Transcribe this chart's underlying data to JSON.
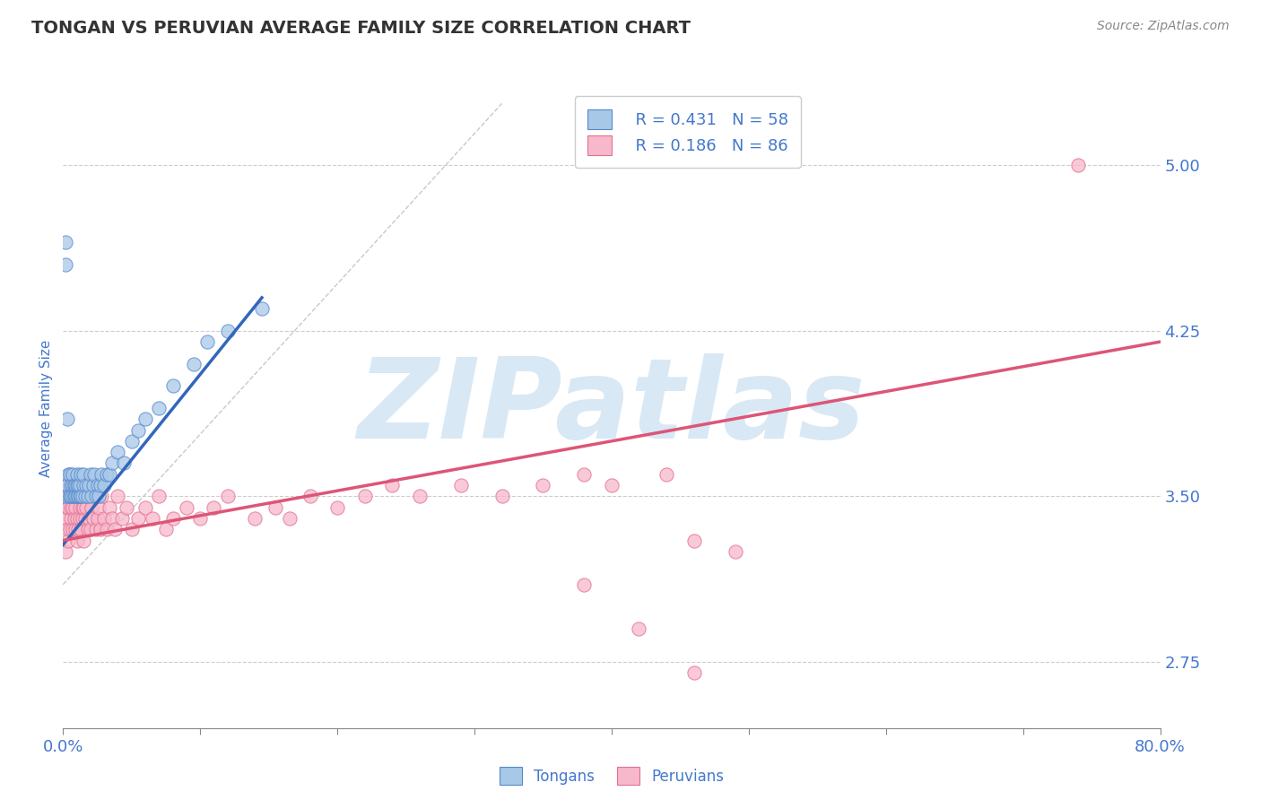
{
  "title": "TONGAN VS PERUVIAN AVERAGE FAMILY SIZE CORRELATION CHART",
  "source_text": "Source: ZipAtlas.com",
  "ylabel": "Average Family Size",
  "xlim": [
    0.0,
    0.8
  ],
  "ylim": [
    2.45,
    5.35
  ],
  "ytick_values": [
    2.75,
    3.5,
    4.25,
    5.0
  ],
  "xtick_positions": [
    0.0,
    0.1,
    0.2,
    0.3,
    0.4,
    0.5,
    0.6,
    0.7,
    0.8
  ],
  "tongan_R": "0.431",
  "tongan_N": "58",
  "peruvian_R": "0.186",
  "peruvian_N": "86",
  "tongan_color": "#a8c8e8",
  "peruvian_color": "#f8b8cc",
  "tongan_edge_color": "#5588cc",
  "peruvian_edge_color": "#e07090",
  "tongan_line_color": "#3366bb",
  "peruvian_line_color": "#dd5577",
  "ref_line_color": "#bbbbbb",
  "title_color": "#333333",
  "label_color": "#4477cc",
  "tick_color": "#4477cc",
  "background_color": "#ffffff",
  "watermark_text": "ZIPatlas",
  "watermark_color": "#d8e8f5",
  "grid_color": "#cccccc",
  "tongan_scatter_x": [
    0.001,
    0.002,
    0.002,
    0.003,
    0.003,
    0.004,
    0.004,
    0.005,
    0.005,
    0.006,
    0.006,
    0.007,
    0.007,
    0.007,
    0.008,
    0.008,
    0.009,
    0.009,
    0.01,
    0.01,
    0.01,
    0.011,
    0.011,
    0.012,
    0.012,
    0.013,
    0.013,
    0.014,
    0.015,
    0.015,
    0.016,
    0.017,
    0.018,
    0.019,
    0.02,
    0.021,
    0.022,
    0.023,
    0.024,
    0.025,
    0.026,
    0.027,
    0.028,
    0.03,
    0.032,
    0.034,
    0.036,
    0.04,
    0.044,
    0.05,
    0.055,
    0.06,
    0.07,
    0.08,
    0.095,
    0.105,
    0.12,
    0.145
  ],
  "tongan_scatter_y": [
    3.5,
    4.55,
    4.65,
    3.55,
    3.85,
    3.5,
    3.6,
    3.5,
    3.6,
    3.5,
    3.55,
    3.5,
    3.55,
    3.6,
    3.5,
    3.55,
    3.5,
    3.55,
    3.5,
    3.55,
    3.6,
    3.5,
    3.55,
    3.5,
    3.55,
    3.5,
    3.6,
    3.5,
    3.55,
    3.6,
    3.5,
    3.55,
    3.5,
    3.55,
    3.6,
    3.5,
    3.55,
    3.6,
    3.5,
    3.55,
    3.5,
    3.55,
    3.6,
    3.55,
    3.6,
    3.6,
    3.65,
    3.7,
    3.65,
    3.75,
    3.8,
    3.85,
    3.9,
    4.0,
    4.1,
    4.2,
    4.25,
    4.35
  ],
  "peruvian_scatter_x": [
    0.001,
    0.002,
    0.003,
    0.003,
    0.003,
    0.004,
    0.004,
    0.005,
    0.005,
    0.005,
    0.006,
    0.006,
    0.006,
    0.007,
    0.007,
    0.008,
    0.008,
    0.009,
    0.009,
    0.01,
    0.01,
    0.01,
    0.011,
    0.011,
    0.012,
    0.012,
    0.013,
    0.013,
    0.014,
    0.014,
    0.015,
    0.015,
    0.016,
    0.016,
    0.017,
    0.018,
    0.018,
    0.019,
    0.02,
    0.021,
    0.022,
    0.023,
    0.024,
    0.025,
    0.026,
    0.027,
    0.028,
    0.03,
    0.032,
    0.034,
    0.036,
    0.038,
    0.04,
    0.043,
    0.046,
    0.05,
    0.055,
    0.06,
    0.065,
    0.07,
    0.075,
    0.08,
    0.09,
    0.1,
    0.11,
    0.12,
    0.14,
    0.155,
    0.165,
    0.18,
    0.2,
    0.22,
    0.24,
    0.26,
    0.29,
    0.32,
    0.35,
    0.38,
    0.4,
    0.44,
    0.46,
    0.49,
    0.38,
    0.42,
    0.46,
    0.74
  ],
  "peruvian_scatter_y": [
    3.4,
    3.25,
    3.35,
    3.45,
    3.55,
    3.3,
    3.45,
    3.35,
    3.5,
    3.6,
    3.4,
    3.45,
    3.55,
    3.35,
    3.45,
    3.4,
    3.5,
    3.35,
    3.45,
    3.3,
    3.4,
    3.55,
    3.35,
    3.5,
    3.4,
    3.45,
    3.35,
    3.5,
    3.4,
    3.45,
    3.3,
    3.45,
    3.4,
    3.55,
    3.45,
    3.35,
    3.5,
    3.4,
    3.35,
    3.45,
    3.4,
    3.5,
    3.35,
    3.4,
    3.45,
    3.35,
    3.5,
    3.4,
    3.35,
    3.45,
    3.4,
    3.35,
    3.5,
    3.4,
    3.45,
    3.35,
    3.4,
    3.45,
    3.4,
    3.5,
    3.35,
    3.4,
    3.45,
    3.4,
    3.45,
    3.5,
    3.4,
    3.45,
    3.4,
    3.5,
    3.45,
    3.5,
    3.55,
    3.5,
    3.55,
    3.5,
    3.55,
    3.6,
    3.55,
    3.6,
    3.3,
    3.25,
    3.1,
    2.9,
    2.7,
    5.0
  ],
  "tongan_trend_x": [
    0.0,
    0.145
  ],
  "tongan_trend_y": [
    3.28,
    4.4
  ],
  "peruvian_trend_x": [
    0.0,
    0.8
  ],
  "peruvian_trend_y": [
    3.3,
    4.2
  ],
  "ref_line_x": [
    0.0,
    0.32
  ],
  "ref_line_y": [
    3.1,
    5.28
  ]
}
